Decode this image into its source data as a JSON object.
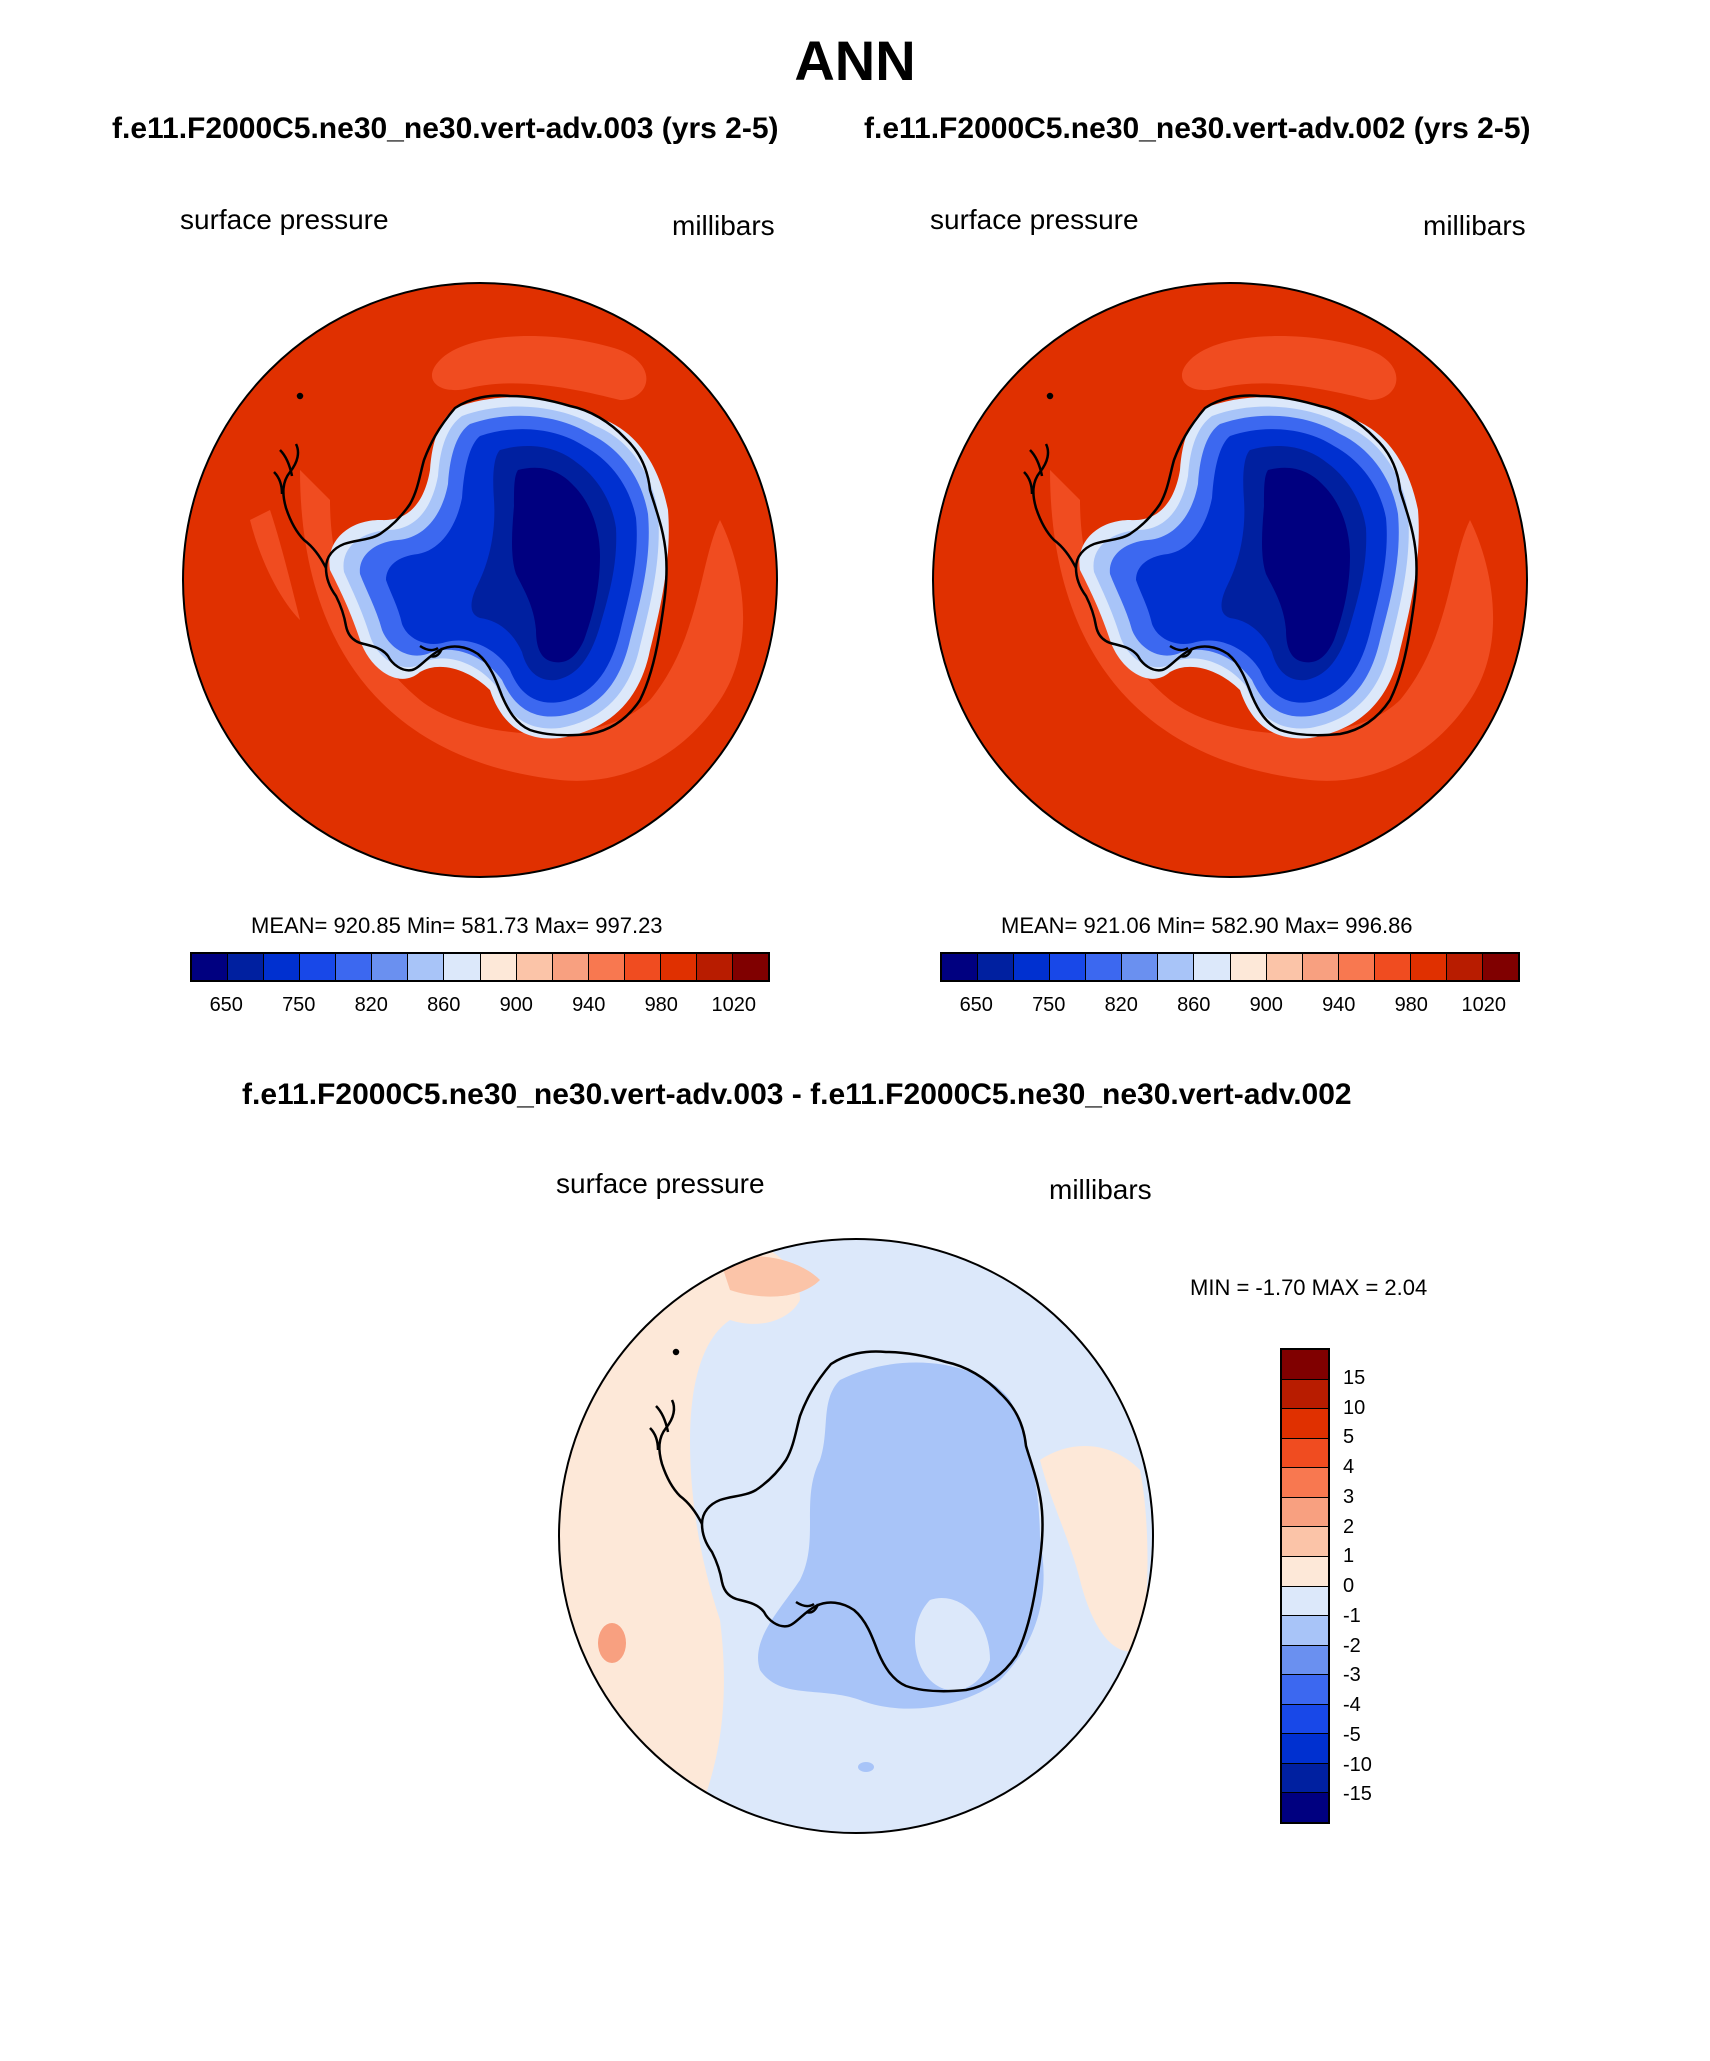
{
  "title": "ANN",
  "panels": [
    {
      "heading": "f.e11.F2000C5.ne30_ne30.vert-adv.003 (yrs 2-5)",
      "variable_label": "surface pressure",
      "units_label": "millibars",
      "stats": "MEAN= 920.85  Min= 581.73  Max= 997.23"
    },
    {
      "heading": "f.e11.F2000C5.ne30_ne30.vert-adv.002 (yrs 2-5)",
      "variable_label": "surface pressure",
      "units_label": "millibars",
      "stats": "MEAN= 921.06  Min= 582.90  Max= 996.86"
    }
  ],
  "diff_panel": {
    "heading": "f.e11.F2000C5.ne30_ne30.vert-adv.003 - f.e11.F2000C5.ne30_ne30.vert-adv.002",
    "variable_label": "surface pressure",
    "units_label": "millibars",
    "stats": "MIN =  -1.70 MAX =   2.04"
  },
  "colorbar_abs": {
    "colors": [
      "#000080",
      "#0020a0",
      "#0030d0",
      "#1848e8",
      "#3c68f0",
      "#6a90f0",
      "#a8c4f8",
      "#dce8fa",
      "#fde8d8",
      "#fbc4a8",
      "#f8a080",
      "#f87850",
      "#f04c20",
      "#e03000",
      "#b81c00",
      "#800000"
    ],
    "tick_labels": [
      "650",
      "750",
      "820",
      "860",
      "900",
      "940",
      "980",
      "1020"
    ]
  },
  "colorbar_diff": {
    "colors": [
      "#800000",
      "#b81c00",
      "#e03000",
      "#f04c20",
      "#f87850",
      "#f8a080",
      "#fbc4a8",
      "#fde8d8",
      "#dce8fa",
      "#a8c4f8",
      "#6a90f0",
      "#3c68f0",
      "#1848e8",
      "#0030d0",
      "#0020a0",
      "#000080"
    ],
    "tick_labels": [
      "15",
      "10",
      "5",
      "4",
      "3",
      "2",
      "1",
      "0",
      "-1",
      "-2",
      "-3",
      "-4",
      "-5",
      "-10",
      "-15"
    ]
  },
  "map_colors": {
    "ocean_abs": "#e03000",
    "ocean_band": "#f04c20",
    "diff_positive": "#fde8d8",
    "diff_negative": "#dce8fa",
    "diff_negative2": "#a8c4f8",
    "diff_positive2": "#f8a080"
  }
}
